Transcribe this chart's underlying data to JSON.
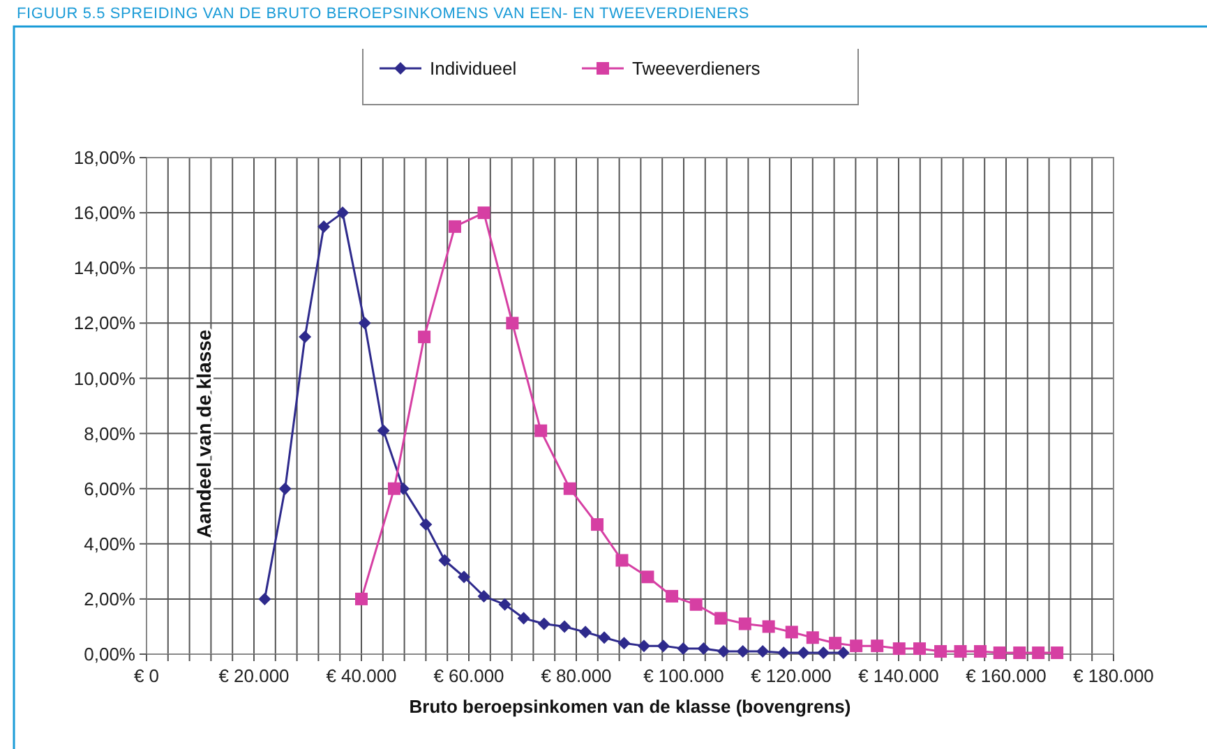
{
  "chart_data": {
    "type": "line",
    "title": "FIGUUR 5.5 SPREIDING VAN DE BRUTO BEROEPSINKOMENS VAN EEN- EN TWEEVERDIENERS",
    "xlabel": "Bruto beroepsinkomen van de klasse (bovengrens)",
    "ylabel": "Aandeel van de klasse",
    "xlim": [
      0,
      180000
    ],
    "xticks": [
      {
        "value": 0,
        "label": "€ 0"
      },
      {
        "value": 4000,
        "label": null
      },
      {
        "value": 8000,
        "label": null
      },
      {
        "value": 12000,
        "label": null
      },
      {
        "value": 16000,
        "label": null
      },
      {
        "value": 20000,
        "label": "€ 20.000"
      },
      {
        "value": 24000,
        "label": null
      },
      {
        "value": 28000,
        "label": null
      },
      {
        "value": 32000,
        "label": null
      },
      {
        "value": 36000,
        "label": null
      },
      {
        "value": 40000,
        "label": "€ 40.000"
      },
      {
        "value": 44000,
        "label": null
      },
      {
        "value": 48000,
        "label": null
      },
      {
        "value": 52000,
        "label": null
      },
      {
        "value": 56000,
        "label": null
      },
      {
        "value": 60000,
        "label": "€ 60.000"
      },
      {
        "value": 64000,
        "label": null
      },
      {
        "value": 68000,
        "label": null
      },
      {
        "value": 72000,
        "label": null
      },
      {
        "value": 76000,
        "label": null
      },
      {
        "value": 80000,
        "label": "€ 80.000"
      },
      {
        "value": 84000,
        "label": null
      },
      {
        "value": 88000,
        "label": null
      },
      {
        "value": 92000,
        "label": null
      },
      {
        "value": 96000,
        "label": null
      },
      {
        "value": 100000,
        "label": "€ 100.000"
      },
      {
        "value": 104000,
        "label": null
      },
      {
        "value": 108000,
        "label": null
      },
      {
        "value": 112000,
        "label": null
      },
      {
        "value": 116000,
        "label": null
      },
      {
        "value": 120000,
        "label": "€ 120.000"
      },
      {
        "value": 124000,
        "label": null
      },
      {
        "value": 128000,
        "label": null
      },
      {
        "value": 132000,
        "label": null
      },
      {
        "value": 136000,
        "label": null
      },
      {
        "value": 140000,
        "label": "€ 140.000"
      },
      {
        "value": 144000,
        "label": null
      },
      {
        "value": 148000,
        "label": null
      },
      {
        "value": 152000,
        "label": null
      },
      {
        "value": 156000,
        "label": null
      },
      {
        "value": 160000,
        "label": "€ 160.000"
      },
      {
        "value": 164000,
        "label": null
      },
      {
        "value": 168000,
        "label": null
      },
      {
        "value": 172000,
        "label": null
      },
      {
        "value": 176000,
        "label": null
      },
      {
        "value": 180000,
        "label": "€ 180.000"
      }
    ],
    "ylim": [
      0,
      18
    ],
    "yticks": [
      {
        "value": 0,
        "label": "0,00%"
      },
      {
        "value": 2,
        "label": "2,00%"
      },
      {
        "value": 4,
        "label": "4,00%"
      },
      {
        "value": 6,
        "label": "6,00%"
      },
      {
        "value": 8,
        "label": "8,00%"
      },
      {
        "value": 10,
        "label": "10,00%"
      },
      {
        "value": 12,
        "label": "12,00%"
      },
      {
        "value": 14,
        "label": "14,00%"
      },
      {
        "value": 16,
        "label": "16,00%"
      },
      {
        "value": 18,
        "label": "18,00%"
      }
    ],
    "grid": true,
    "legend": "top",
    "line_style": "solid",
    "series": [
      {
        "name": "Individueel",
        "color": "#2e2a8c",
        "marker": "diamond",
        "x": [
          22000,
          25800,
          29500,
          33000,
          36500,
          40600,
          44100,
          47800,
          52000,
          55500,
          59100,
          62800,
          66700,
          70200,
          74000,
          77800,
          81700,
          85200,
          88900,
          92600,
          96200,
          99900,
          103700,
          107400,
          111000,
          114700,
          118600,
          122300,
          126000,
          129700
        ],
        "values": [
          2.0,
          6.0,
          11.5,
          15.5,
          16.0,
          12.0,
          8.1,
          6.0,
          4.7,
          3.4,
          2.8,
          2.1,
          1.8,
          1.3,
          1.1,
          1.0,
          0.8,
          0.6,
          0.4,
          0.3,
          0.3,
          0.2,
          0.2,
          0.1,
          0.1,
          0.1,
          0.05,
          0.05,
          0.05,
          0.05
        ]
      },
      {
        "name": "Tweeverdieners",
        "color": "#d63fa3",
        "marker": "square",
        "x": [
          40000,
          46100,
          51700,
          57400,
          62800,
          68100,
          73400,
          78800,
          83900,
          88500,
          93300,
          97800,
          102300,
          106900,
          111400,
          115800,
          120100,
          124000,
          128200,
          132100,
          136000,
          140100,
          143900,
          147800,
          151500,
          155200,
          158800,
          162500,
          166000,
          169500
        ],
        "values": [
          2.0,
          6.0,
          11.5,
          15.5,
          16.0,
          12.0,
          8.1,
          6.0,
          4.7,
          3.4,
          2.8,
          2.1,
          1.8,
          1.3,
          1.1,
          1.0,
          0.8,
          0.6,
          0.4,
          0.3,
          0.3,
          0.2,
          0.2,
          0.1,
          0.1,
          0.1,
          0.05,
          0.05,
          0.05,
          0.05
        ]
      }
    ]
  }
}
